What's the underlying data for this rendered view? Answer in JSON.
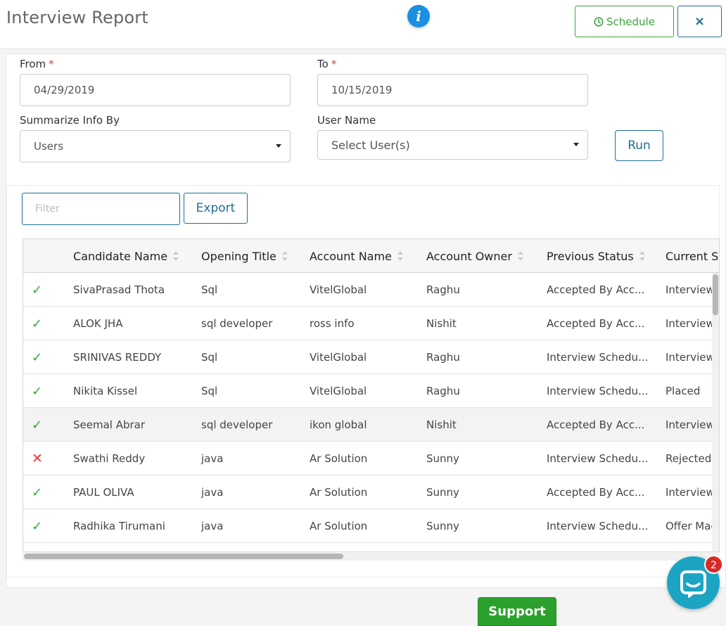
{
  "header": {
    "title": "Interview Report",
    "info_icon": "i",
    "schedule_label": "Schedule",
    "close_label": "×"
  },
  "form": {
    "from_label": "From",
    "from_value": "04/29/2019",
    "to_label": "To",
    "to_value": "10/15/2019",
    "required_mark": "*",
    "summarize_label": "Summarize Info By",
    "summarize_value": "Users",
    "username_label": "User Name",
    "username_placeholder": "Select User(s)",
    "run_label": "Run"
  },
  "toolbar": {
    "filter_placeholder": "Filter",
    "export_label": "Export"
  },
  "table": {
    "columns": [
      "Candidate Name",
      "Opening Title",
      "Account Name",
      "Account Owner",
      "Previous Status",
      "Current S"
    ],
    "rows": [
      {
        "mark": "✓",
        "status": "ok",
        "name": "SivaPrasad Thota",
        "opening": "Sql",
        "account": "VitelGlobal",
        "owner": "Raghu",
        "prev": "Accepted By Acc...",
        "curr": "Interview"
      },
      {
        "mark": "✓",
        "status": "ok",
        "name": "ALOK JHA",
        "opening": "sql developer",
        "account": "ross info",
        "owner": "Nishit",
        "prev": "Accepted By Acc...",
        "curr": "Interview"
      },
      {
        "mark": "✓",
        "status": "ok",
        "name": "SRINIVAS REDDY",
        "opening": "Sql",
        "account": "VitelGlobal",
        "owner": "Raghu",
        "prev": "Interview Schedu...",
        "curr": "Interview"
      },
      {
        "mark": "✓",
        "status": "ok",
        "name": "Nikita Kissel",
        "opening": "Sql",
        "account": "VitelGlobal",
        "owner": "Raghu",
        "prev": "Interview Schedu...",
        "curr": "Placed"
      },
      {
        "mark": "✓",
        "status": "ok",
        "name": "Seemal Abrar",
        "opening": "sql developer",
        "account": "ikon global",
        "owner": "Nishit",
        "prev": "Accepted By Acc...",
        "curr": "Interview"
      },
      {
        "mark": "✕",
        "status": "no",
        "name": "Swathi Reddy",
        "opening": "java",
        "account": "Ar Solution",
        "owner": "Sunny",
        "prev": "Interview Schedu...",
        "curr": "Rejected"
      },
      {
        "mark": "✓",
        "status": "ok",
        "name": "PAUL OLIVA",
        "opening": "java",
        "account": "Ar Solution",
        "owner": "Sunny",
        "prev": "Accepted By Acc...",
        "curr": "Interview"
      },
      {
        "mark": "✓",
        "status": "ok",
        "name": "Radhika Tirumani",
        "opening": "java",
        "account": "Ar Solution",
        "owner": "Sunny",
        "prev": "Interview Schedu...",
        "curr": "Offer Mad"
      }
    ]
  },
  "footer": {
    "support_label": "Support",
    "chat_badge": "2"
  },
  "colors": {
    "accent": "#1f6f95",
    "success": "#3aa63a",
    "danger": "#e53935",
    "info": "#1a8fe3",
    "chat": "#1ca5c3"
  }
}
